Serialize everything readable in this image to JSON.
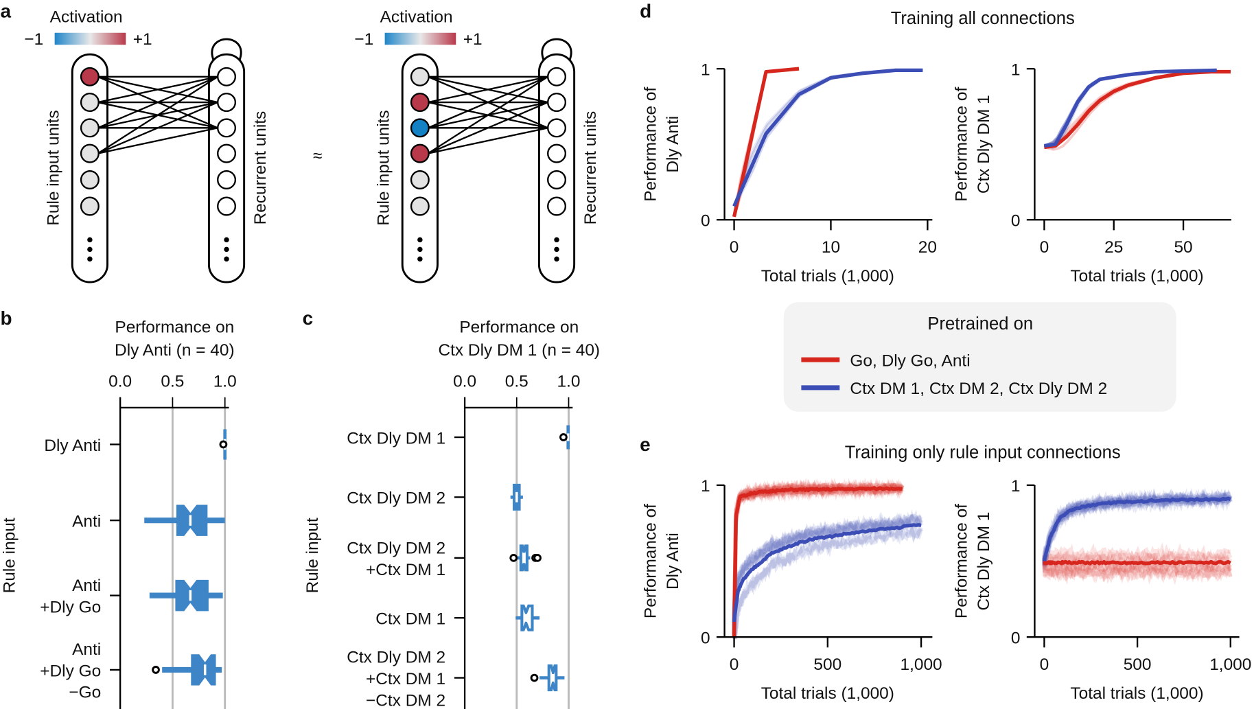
{
  "panel_labels": {
    "a": "a",
    "b": "b",
    "c": "c",
    "d": "d",
    "e": "e"
  },
  "panel_a": {
    "colorbar_title": "Activation",
    "min_label": "−1",
    "max_label": "+1",
    "colorbar_colors": [
      "#1f86c8",
      "#e8e8e8",
      "#b8394a"
    ],
    "input_label": "Rule input units",
    "recurrent_label": "Recurrent units",
    "approx_symbol": "≈",
    "left_network_input_activations": [
      1,
      0,
      0,
      0,
      0,
      0
    ],
    "right_network_input_activations": [
      0,
      1,
      -1,
      1,
      0,
      0
    ],
    "colors": {
      "positive": "#b8394a",
      "negative": "#1581c5",
      "neutral": "#e3e3e3"
    }
  },
  "panel_d": {
    "title": "Training all connections"
  },
  "panel_e": {
    "title": "Training only rule input connections"
  },
  "legend": {
    "title": "Pretrained on",
    "items": [
      {
        "label": "Go, Dly Go, Anti",
        "color": "#d7261e"
      },
      {
        "label": "Ctx DM 1, Ctx DM 2, Ctx Dly DM 2",
        "color": "#3c4db5"
      }
    ]
  },
  "chart_data": [
    {
      "id": "b",
      "type": "boxplot",
      "orientation": "horizontal",
      "title_lines": [
        "Performance on",
        "Dly Anti (n = 40)"
      ],
      "ylabel": "Rule input",
      "xlim": [
        0,
        1
      ],
      "xticks": [
        "0.0",
        "0.5",
        "1.0"
      ],
      "gridlines": [
        0.5,
        1.0
      ],
      "style": "filled",
      "color": "#3d85c6",
      "categories": [
        "Dly Anti",
        "Anti",
        "Anti\n+Dly Go",
        "Anti\n+Dly Go\n−Go"
      ],
      "boxes": [
        {
          "whisker_low": 0.99,
          "q1": 0.995,
          "median": 1.0,
          "q3": 1.0,
          "whisker_high": 1.0,
          "outliers": [
            0.985
          ]
        },
        {
          "whisker_low": 0.23,
          "q1": 0.54,
          "median": 0.67,
          "q3": 0.83,
          "whisker_high": 1.0,
          "outliers": []
        },
        {
          "whisker_low": 0.28,
          "q1": 0.53,
          "median": 0.67,
          "q3": 0.84,
          "whisker_high": 0.98,
          "outliers": []
        },
        {
          "whisker_low": 0.4,
          "q1": 0.68,
          "median": 0.81,
          "q3": 0.91,
          "whisker_high": 0.97,
          "outliers": [
            0.34
          ]
        }
      ]
    },
    {
      "id": "c",
      "type": "boxplot",
      "orientation": "horizontal",
      "title_lines": [
        "Performance on",
        "Ctx Dly DM 1 (n = 40)"
      ],
      "ylabel": "Rule input",
      "xlim": [
        0,
        1
      ],
      "xticks": [
        "0.0",
        "0.5",
        "1.0"
      ],
      "gridlines": [
        0.5,
        1.0
      ],
      "style": "outline",
      "color": "#3d85c6",
      "categories": [
        "Ctx Dly DM 1",
        "Ctx Dly DM 2",
        "Ctx Dly DM 2\n+Ctx DM 1",
        "Ctx DM 1",
        "Ctx Dly DM 2\n+Ctx DM 1\n−Ctx DM 2"
      ],
      "boxes": [
        {
          "whisker_low": 0.98,
          "q1": 0.99,
          "median": 0.995,
          "q3": 1.0,
          "whisker_high": 1.0,
          "outliers": [
            0.95
          ]
        },
        {
          "whisker_low": 0.44,
          "q1": 0.475,
          "median": 0.5,
          "q3": 0.525,
          "whisker_high": 0.56,
          "outliers": []
        },
        {
          "whisker_low": 0.49,
          "q1": 0.54,
          "median": 0.57,
          "q3": 0.6,
          "whisker_high": 0.63,
          "outliers": [
            0.47,
            0.68,
            0.7
          ]
        },
        {
          "whisker_low": 0.49,
          "q1": 0.55,
          "median": 0.59,
          "q3": 0.65,
          "whisker_high": 0.72,
          "outliers": []
        },
        {
          "whisker_low": 0.72,
          "q1": 0.81,
          "median": 0.85,
          "q3": 0.88,
          "whisker_high": 0.96,
          "outliers": [
            0.67
          ]
        }
      ]
    },
    {
      "id": "d-left",
      "type": "line",
      "ylabel_lines": [
        "Performance of",
        "Dly Anti"
      ],
      "xlabel": "Total trials (1,000)",
      "xlim": [
        0,
        20
      ],
      "ylim": [
        0,
        1
      ],
      "xticks": [
        0,
        10,
        20
      ],
      "yticks": [
        0,
        1
      ],
      "series": [
        {
          "color": "#d7261e",
          "run_spread": 0.05,
          "x": [
            0,
            3.3,
            6.7
          ],
          "y": [
            0.02,
            0.98,
            1.0
          ]
        },
        {
          "color": "#3c4db5",
          "run_spread": 0.08,
          "x": [
            0,
            3.3,
            6.7,
            10,
            13.3,
            16.7,
            19.5
          ],
          "y": [
            0.09,
            0.57,
            0.83,
            0.94,
            0.97,
            0.99,
            0.99
          ]
        }
      ]
    },
    {
      "id": "d-right",
      "type": "line",
      "ylabel_lines": [
        "Performance of",
        "Ctx Dly DM 1"
      ],
      "xlabel": "Total trials (1,000)",
      "xlim": [
        0,
        67
      ],
      "ylim": [
        0,
        1
      ],
      "xticks": [
        0,
        25,
        50
      ],
      "yticks": [
        0,
        1
      ],
      "series": [
        {
          "color": "#d7261e",
          "run_spread": 0.06,
          "x": [
            0,
            4,
            8,
            12,
            16,
            20,
            25,
            30,
            40,
            50,
            60,
            67
          ],
          "y": [
            0.48,
            0.49,
            0.55,
            0.63,
            0.72,
            0.79,
            0.85,
            0.89,
            0.94,
            0.97,
            0.98,
            0.98
          ]
        },
        {
          "color": "#3c4db5",
          "run_spread": 0.05,
          "x": [
            0,
            4,
            8,
            12,
            16,
            20,
            30,
            40,
            62
          ],
          "y": [
            0.49,
            0.5,
            0.63,
            0.78,
            0.88,
            0.93,
            0.96,
            0.98,
            0.99
          ]
        }
      ]
    },
    {
      "id": "e-left",
      "type": "line",
      "ylabel_lines": [
        "Performance of",
        "Dly Anti"
      ],
      "xlabel": "Total trials (1,000)",
      "xlim": [
        0,
        1000
      ],
      "ylim": [
        0,
        1
      ],
      "xticks": [
        "0",
        "500",
        "1,000"
      ],
      "xtick_values": [
        0,
        500,
        1000
      ],
      "yticks": [
        0,
        1
      ],
      "series": [
        {
          "color": "#d7261e",
          "run_spread": 0.07,
          "x": [
            0,
            10,
            30,
            100,
            300,
            600,
            900
          ],
          "y": [
            0.0,
            0.8,
            0.92,
            0.95,
            0.97,
            0.975,
            0.98
          ]
        },
        {
          "color": "#3c4db5",
          "run_spread": 0.12,
          "x": [
            0,
            20,
            50,
            100,
            200,
            300,
            400,
            600,
            800,
            1000
          ],
          "y": [
            0.1,
            0.3,
            0.38,
            0.45,
            0.55,
            0.6,
            0.64,
            0.68,
            0.71,
            0.74
          ]
        }
      ]
    },
    {
      "id": "e-right",
      "type": "line",
      "ylabel_lines": [
        "Performance of",
        "Ctx Dly DM 1"
      ],
      "xlabel": "Total trials (1,000)",
      "xlim": [
        0,
        1000
      ],
      "ylim": [
        0,
        1
      ],
      "xticks": [
        "0",
        "500",
        "1,000"
      ],
      "xtick_values": [
        0,
        500,
        1000
      ],
      "yticks": [
        0,
        1
      ],
      "series": [
        {
          "color": "#d7261e",
          "run_spread": 0.07,
          "x": [
            0,
            100,
            300,
            500,
            700,
            1000
          ],
          "y": [
            0.49,
            0.49,
            0.49,
            0.49,
            0.49,
            0.49
          ]
        },
        {
          "color": "#3c4db5",
          "run_spread": 0.05,
          "x": [
            0,
            30,
            80,
            150,
            300,
            600,
            1000
          ],
          "y": [
            0.5,
            0.65,
            0.78,
            0.84,
            0.88,
            0.9,
            0.91
          ]
        }
      ]
    }
  ]
}
